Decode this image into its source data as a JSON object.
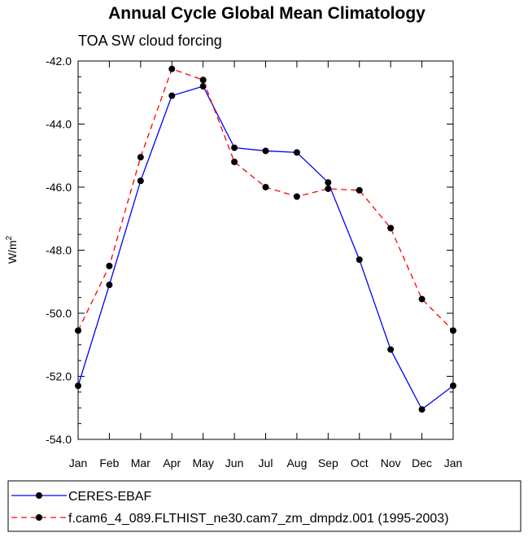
{
  "chart_data": {
    "type": "line",
    "title": "Annual Cycle Global Mean Climatology",
    "subtitle": "TOA SW cloud forcing",
    "ylabel_base": "W/m",
    "ylabel_sup": "2",
    "categories": [
      "Jan",
      "Feb",
      "Mar",
      "Apr",
      "May",
      "Jun",
      "Jul",
      "Aug",
      "Sep",
      "Oct",
      "Nov",
      "Dec",
      "Jan"
    ],
    "ylim": [
      -54.0,
      -42.0
    ],
    "y_ticks": [
      -42.0,
      -44.0,
      -46.0,
      -48.0,
      -50.0,
      -52.0,
      -54.0
    ],
    "y_tick_labels": [
      "-42.0",
      "-44.0",
      "-46.0",
      "-48.0",
      "-50.0",
      "-52.0",
      "-54.0"
    ],
    "series": [
      {
        "name": "CERES-EBAF",
        "color": "#0000ff",
        "dash": "solid",
        "values": [
          -52.3,
          -49.1,
          -45.8,
          -43.1,
          -42.8,
          -44.75,
          -44.85,
          -44.9,
          -45.85,
          -48.3,
          -51.15,
          -53.05,
          -52.3
        ]
      },
      {
        "name": "f.cam6_4_089.FLTHIST_ne30.cam7_zm_dmpdz.001 (1995-2003)",
        "color": "#ff0000",
        "dash": "dashed",
        "values": [
          -50.55,
          -48.5,
          -45.05,
          -42.25,
          -42.6,
          -45.2,
          -46.0,
          -46.3,
          -46.05,
          -46.1,
          -47.3,
          -49.55,
          -50.55
        ]
      }
    ],
    "grid": false,
    "legend_position": "bottom"
  }
}
